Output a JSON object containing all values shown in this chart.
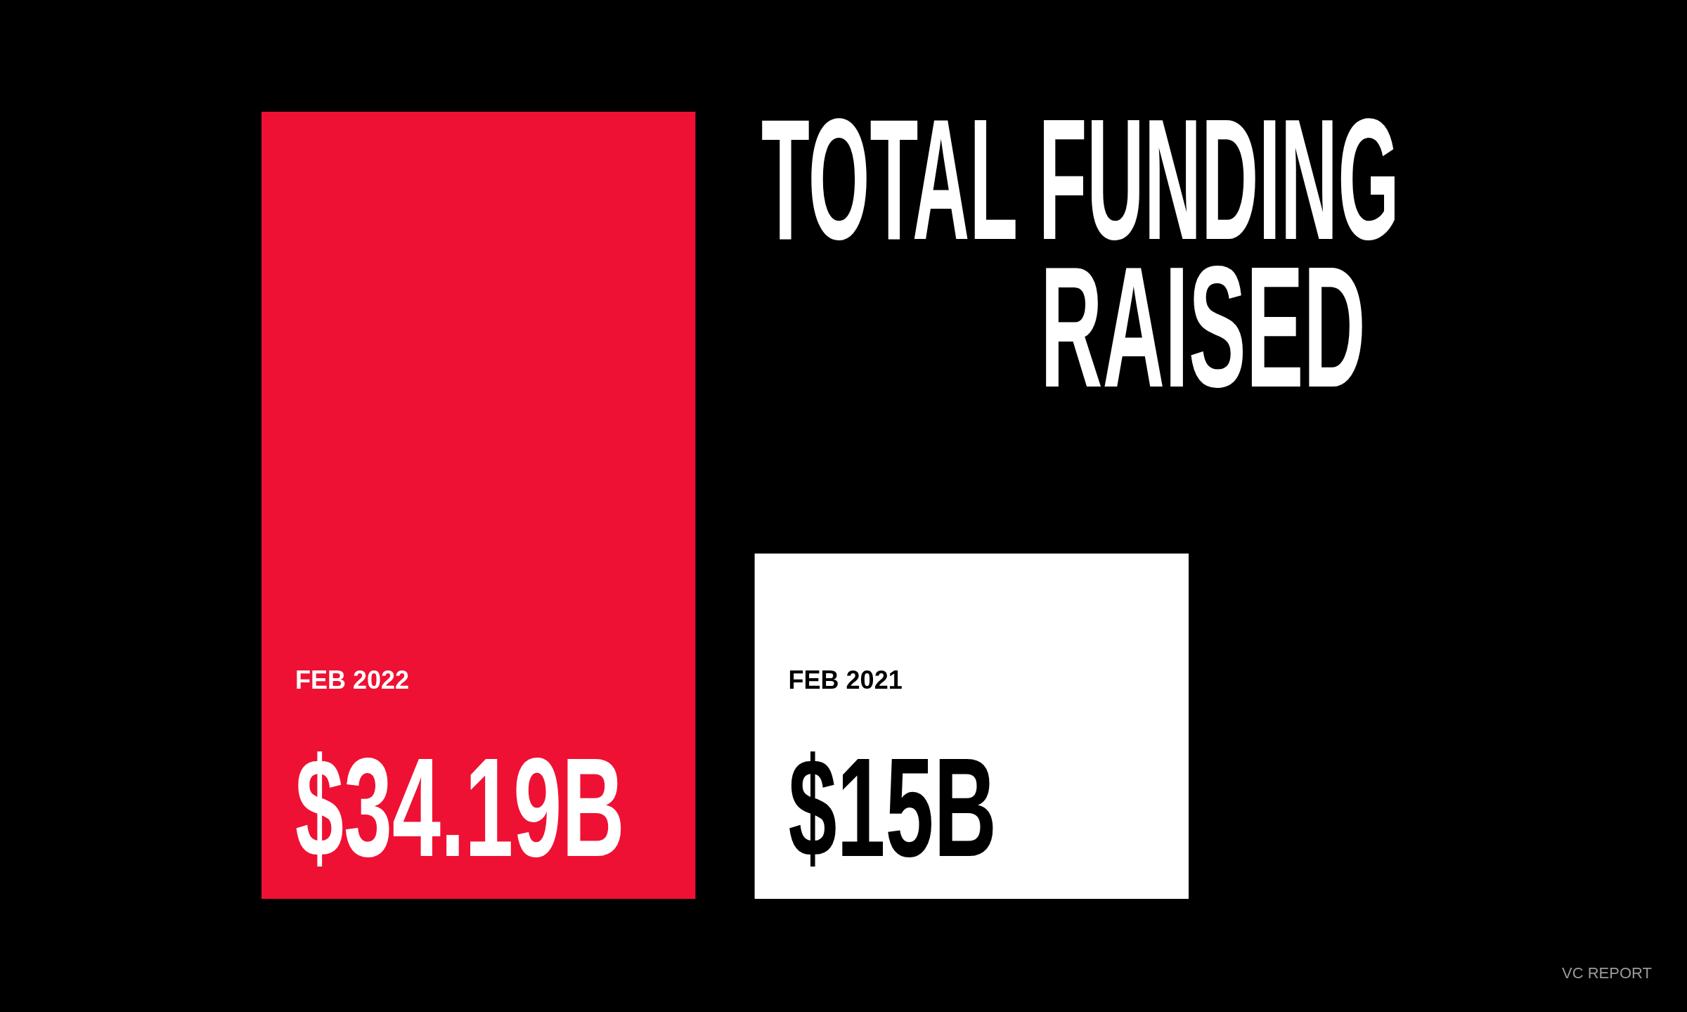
{
  "chart_data": {
    "type": "bar",
    "title": "TOTAL FUNDING RAISED",
    "categories": [
      "FEB 2022",
      "FEB 2021"
    ],
    "values": [
      34.19,
      15
    ],
    "colors": [
      "#ee1133",
      "#ffffff"
    ],
    "value_labels": [
      "$34.19B",
      "$15B"
    ],
    "annotations": [
      "VC REPORT"
    ]
  }
}
